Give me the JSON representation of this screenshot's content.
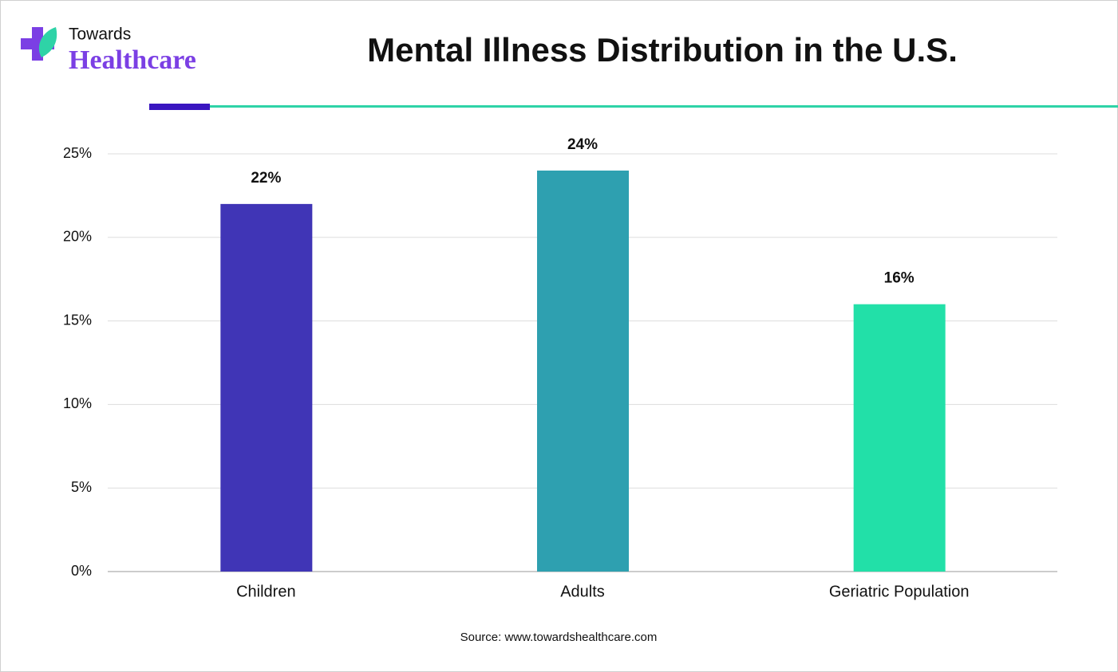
{
  "logo": {
    "line1": "Towards",
    "line2": "Healthcare"
  },
  "chart_data": {
    "type": "bar",
    "title": "Mental Illness Distribution in the U.S.",
    "categories": [
      "Children",
      "Adults",
      "Geriatric Population"
    ],
    "values": [
      22,
      24,
      16
    ],
    "value_labels": [
      "22%",
      "24%",
      "16%"
    ],
    "colors": [
      "#4035b6",
      "#2ea0b0",
      "#22e0a8"
    ],
    "ylim": [
      0,
      25
    ],
    "yticks": [
      {
        "value": 0,
        "label": "0%"
      },
      {
        "value": 5,
        "label": "5%"
      },
      {
        "value": 10,
        "label": "10%"
      },
      {
        "value": 15,
        "label": "15%"
      },
      {
        "value": 20,
        "label": "20%"
      },
      {
        "value": 25,
        "label": "25%"
      }
    ],
    "grid": true,
    "source": "Source: www.towardshealthcare.com"
  }
}
